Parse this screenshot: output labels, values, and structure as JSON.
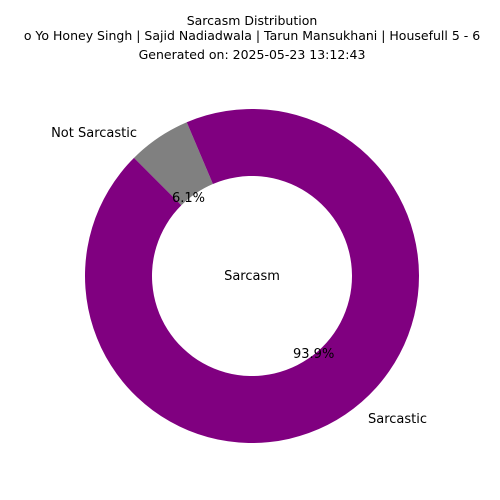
{
  "chart_data": {
    "type": "pie",
    "title_lines": [
      "Sarcasm Distribution",
      "o Yo Honey Singh | Sajid Nadiadwala | Tarun Mansukhani | Housefull 5 - 6",
      "Generated on: 2025-05-23 13:12:43"
    ],
    "center_label": "Sarcasm",
    "donut": true,
    "slices": [
      {
        "label": "Not Sarcastic",
        "value": 6.1,
        "pct_label": "6.1%",
        "color": "#808080"
      },
      {
        "label": "Sarcastic",
        "value": 93.9,
        "pct_label": "93.9%",
        "color": "#800080"
      }
    ]
  }
}
